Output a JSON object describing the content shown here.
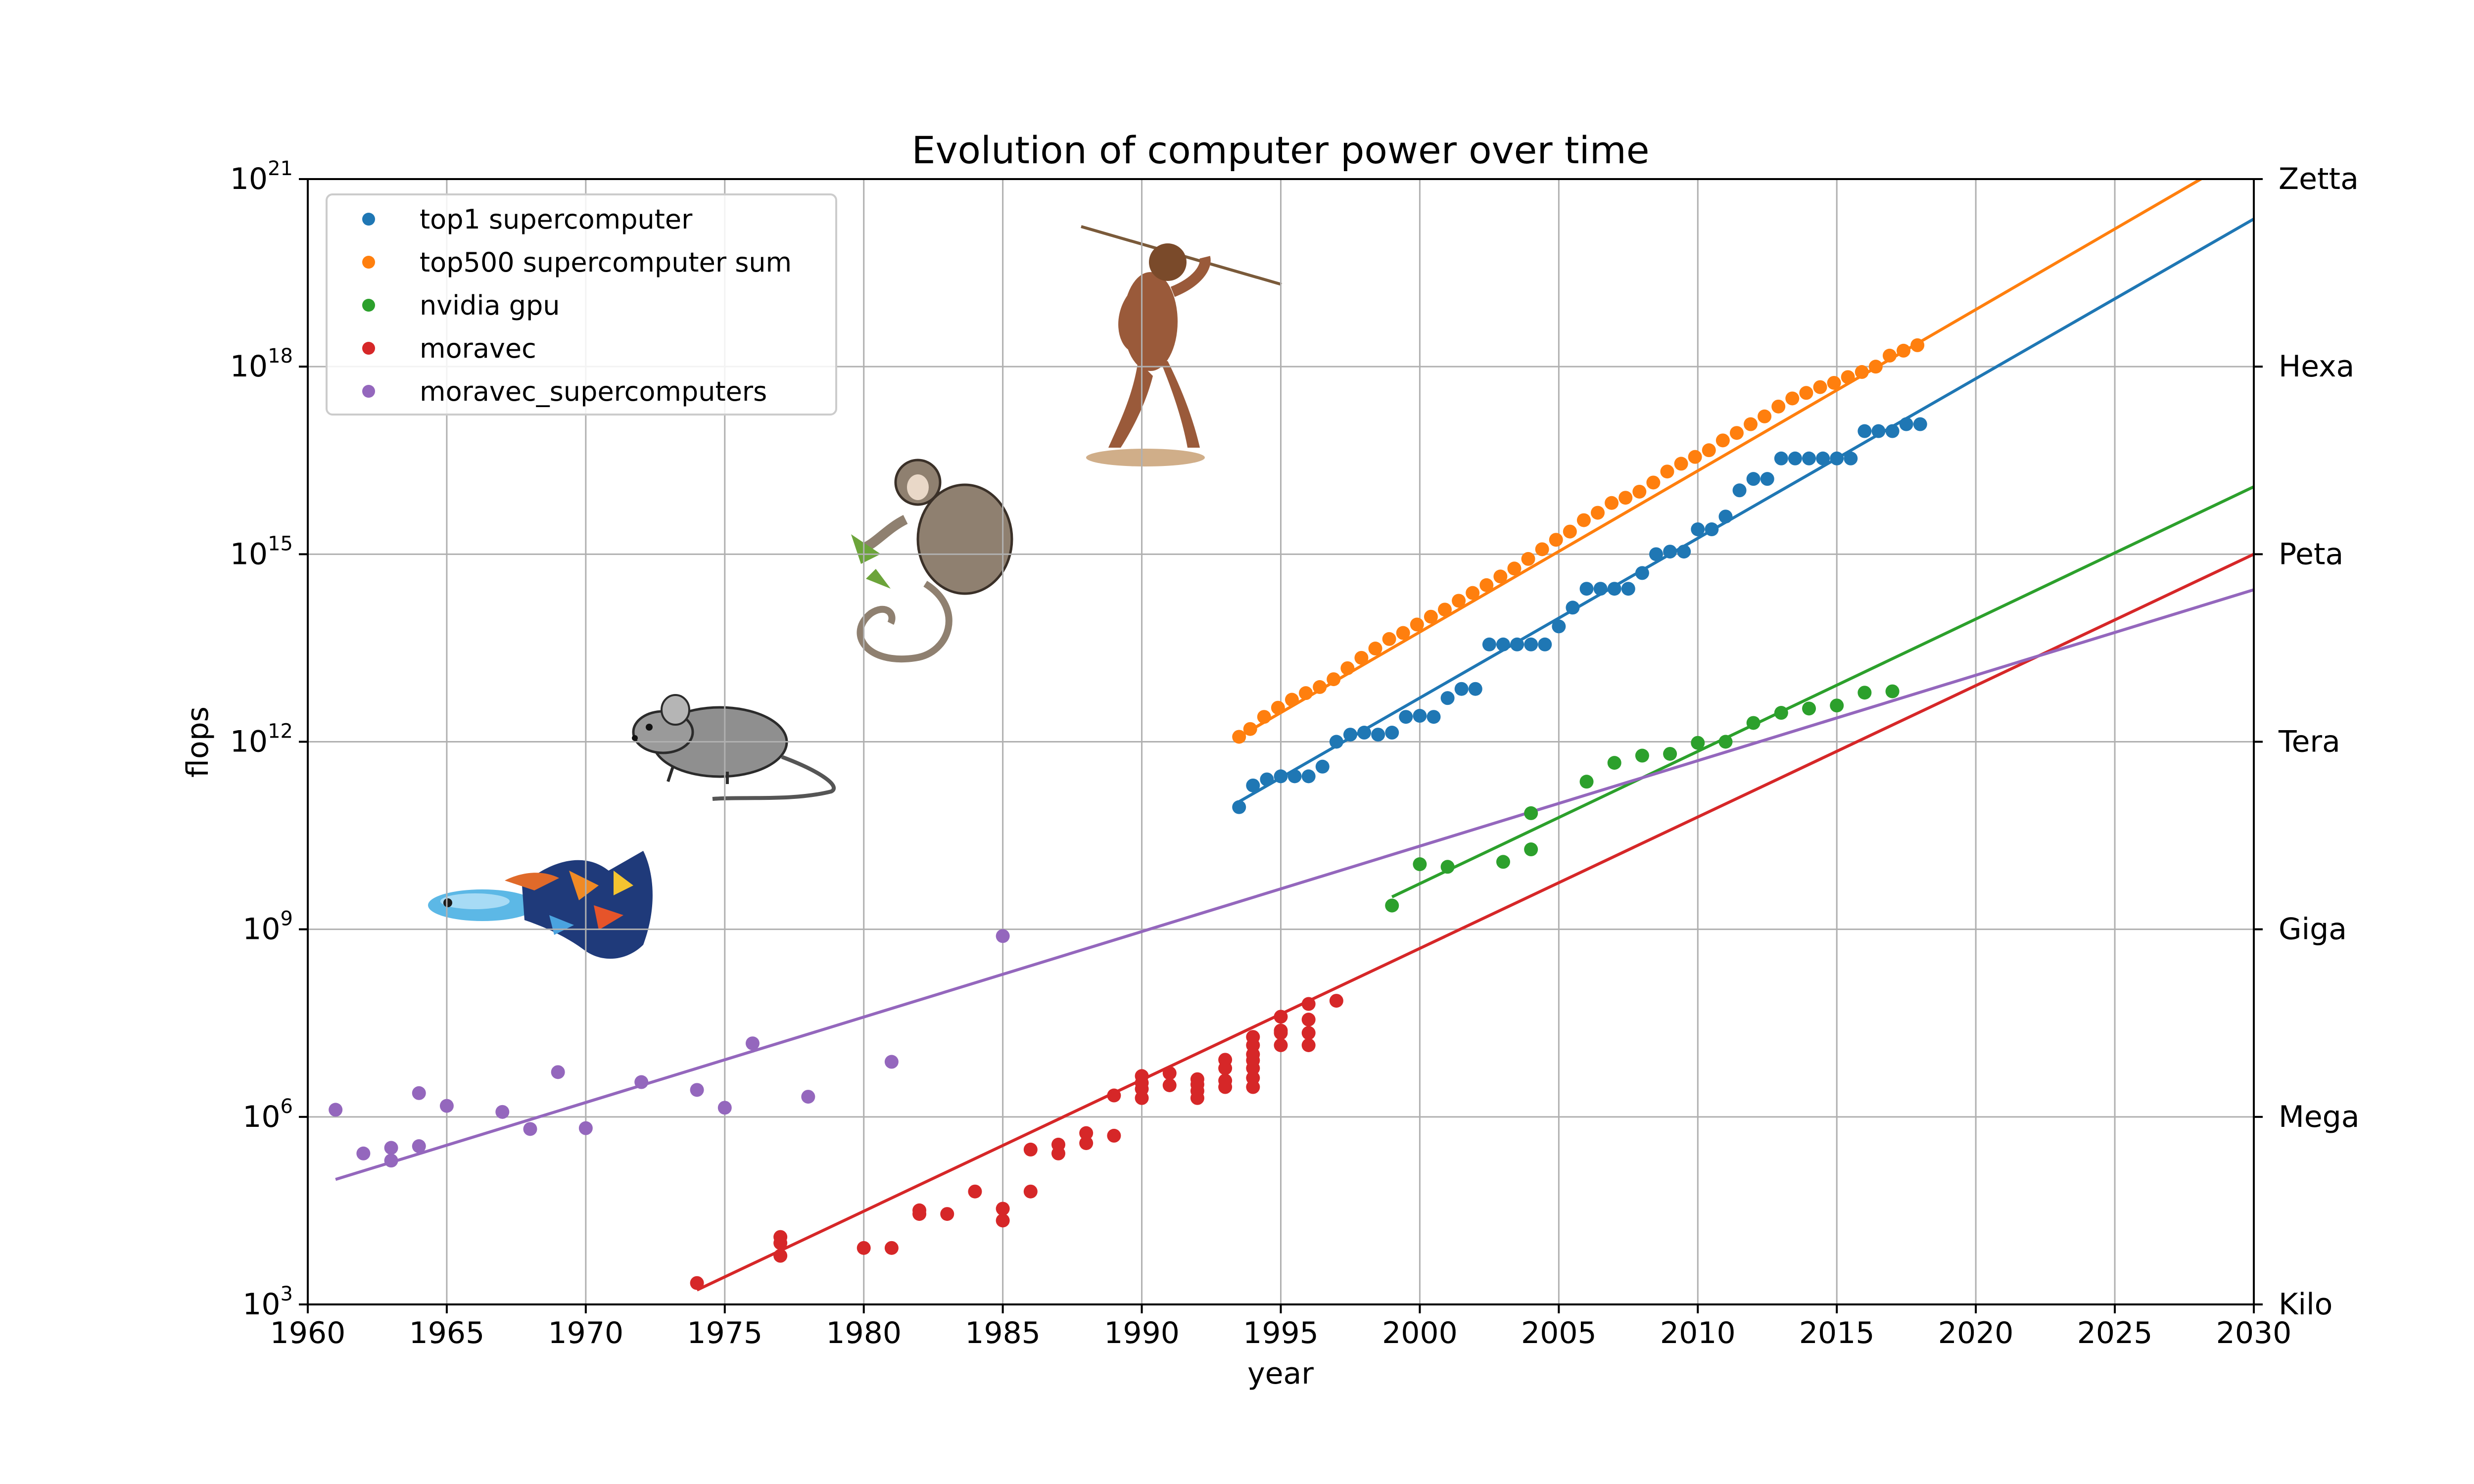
{
  "chart_data": {
    "type": "scatter",
    "title": "Evolution of computer power over time",
    "xlabel": "year",
    "ylabel": "flops",
    "xlim": [
      1960,
      2030
    ],
    "ylim": [
      1000,
      1e+21
    ],
    "yscale": "log",
    "grid": true,
    "legend_position": "upper-left",
    "x_ticks": [
      "1960",
      "1965",
      "1970",
      "1975",
      "1980",
      "1985",
      "1990",
      "1995",
      "2000",
      "2005",
      "2010",
      "2015",
      "2020",
      "2025",
      "2030"
    ],
    "y_ticks": [
      {
        "base": "10",
        "exp": "3"
      },
      {
        "base": "10",
        "exp": "6"
      },
      {
        "base": "10",
        "exp": "9"
      },
      {
        "base": "10",
        "exp": "12"
      },
      {
        "base": "10",
        "exp": "15"
      },
      {
        "base": "10",
        "exp": "18"
      },
      {
        "base": "10",
        "exp": "21"
      }
    ],
    "right_tick_labels": [
      "Kilo",
      "Mega",
      "Giga",
      "Tera",
      "Peta",
      "Hexa",
      "Zetta"
    ],
    "series": [
      {
        "name": "top1 supercomputer",
        "color": "#1f77b4",
        "points": [
          [
            1993.5,
            90000000000.0
          ],
          [
            1994,
            200000000000.0
          ],
          [
            1994.5,
            250000000000.0
          ],
          [
            1995,
            280000000000.0
          ],
          [
            1995.5,
            280000000000.0
          ],
          [
            1996,
            280000000000.0
          ],
          [
            1996.5,
            400000000000.0
          ],
          [
            1997,
            1000000000000.0
          ],
          [
            1997.5,
            1300000000000.0
          ],
          [
            1998,
            1400000000000.0
          ],
          [
            1998.5,
            1300000000000.0
          ],
          [
            1999,
            1400000000000.0
          ],
          [
            1999.5,
            2500000000000.0
          ],
          [
            2000,
            2600000000000.0
          ],
          [
            2000.5,
            2500000000000.0
          ],
          [
            2001,
            5000000000000.0
          ],
          [
            2001.5,
            7000000000000.0
          ],
          [
            2002,
            7000000000000.0
          ],
          [
            2002.5,
            36000000000000.0
          ],
          [
            2003,
            36000000000000.0
          ],
          [
            2003.5,
            36000000000000.0
          ],
          [
            2004,
            36000000000000.0
          ],
          [
            2004.5,
            36000000000000.0
          ],
          [
            2005,
            70000000000000.0
          ],
          [
            2005.5,
            140000000000000.0
          ],
          [
            2006,
            280000000000000.0
          ],
          [
            2006.5,
            280000000000000.0
          ],
          [
            2007,
            280000000000000.0
          ],
          [
            2007.5,
            280000000000000.0
          ],
          [
            2008,
            500000000000000.0
          ],
          [
            2008.5,
            1000000000000000.0
          ],
          [
            2009,
            1100000000000000.0
          ],
          [
            2009.5,
            1100000000000000.0
          ],
          [
            2010,
            2500000000000000.0
          ],
          [
            2010.5,
            2500000000000000.0
          ],
          [
            2011,
            4000000000000000.0
          ],
          [
            2011.5,
            1.05e+16
          ],
          [
            2012,
            1.6e+16
          ],
          [
            2012.5,
            1.6e+16
          ],
          [
            2013,
            3.4e+16
          ],
          [
            2013.5,
            3.4e+16
          ],
          [
            2014,
            3.4e+16
          ],
          [
            2014.5,
            3.4e+16
          ],
          [
            2015,
            3.4e+16
          ],
          [
            2015.5,
            3.4e+16
          ],
          [
            2016,
            9.3e+16
          ],
          [
            2016.5,
            9.3e+16
          ],
          [
            2017,
            9.3e+16
          ],
          [
            2017.5,
            1.2e+17
          ],
          [
            2018,
            1.2e+17
          ]
        ]
      },
      {
        "name": "top500 supercomputer sum",
        "color": "#ff7f0e",
        "points": [
          [
            1993.5,
            1200000000000.0
          ],
          [
            1993.9,
            1600000000000.0
          ],
          [
            1994.4,
            2500000000000.0
          ],
          [
            1994.9,
            3500000000000.0
          ],
          [
            1995.4,
            4700000000000.0
          ],
          [
            1995.9,
            6000000000000.0
          ],
          [
            1996.4,
            7500000000000.0
          ],
          [
            1996.9,
            10000000000000.0
          ],
          [
            1997.4,
            15000000000000.0
          ],
          [
            1997.9,
            22000000000000.0
          ],
          [
            1998.4,
            31000000000000.0
          ],
          [
            1998.9,
            44000000000000.0
          ],
          [
            1999.4,
            55000000000000.0
          ],
          [
            1999.9,
            75000000000000.0
          ],
          [
            2000.4,
            100000000000000.0
          ],
          [
            2000.9,
            130000000000000.0
          ],
          [
            2001.4,
            180000000000000.0
          ],
          [
            2001.9,
            240000000000000.0
          ],
          [
            2002.4,
            320000000000000.0
          ],
          [
            2002.9,
            440000000000000.0
          ],
          [
            2003.4,
            590000000000000.0
          ],
          [
            2003.9,
            840000000000000.0
          ],
          [
            2004.4,
            1200000000000000.0
          ],
          [
            2004.9,
            1700000000000000.0
          ],
          [
            2005.4,
            2300000000000000.0
          ],
          [
            2005.9,
            3500000000000000.0
          ],
          [
            2006.4,
            4600000000000000.0
          ],
          [
            2006.9,
            6600000000000000.0
          ],
          [
            2007.4,
            8000000000000000.0
          ],
          [
            2007.9,
            1e+16
          ],
          [
            2008.4,
            1.4e+16
          ],
          [
            2008.9,
            2.1e+16
          ],
          [
            2009.4,
            2.8e+16
          ],
          [
            2009.9,
            3.6e+16
          ],
          [
            2010.4,
            4.6e+16
          ],
          [
            2010.9,
            6.6e+16
          ],
          [
            2011.4,
            8.7e+16
          ],
          [
            2011.9,
            1.2e+17
          ],
          [
            2012.4,
            1.6e+17
          ],
          [
            2012.9,
            2.3e+17
          ],
          [
            2013.4,
            3.1e+17
          ],
          [
            2013.9,
            3.8e+17
          ],
          [
            2014.4,
            4.7e+17
          ],
          [
            2014.9,
            5.5e+17
          ],
          [
            2015.4,
            6.8e+17
          ],
          [
            2015.9,
            8.2e+17
          ],
          [
            2016.4,
            1e+18
          ],
          [
            2016.9,
            1.5e+18
          ],
          [
            2017.4,
            1.8e+18
          ],
          [
            2017.9,
            2.2e+18
          ]
        ]
      },
      {
        "name": "nvidia gpu",
        "color": "#2ca02c",
        "points": [
          [
            1999,
            2400000000.0
          ],
          [
            2000,
            11000000000.0
          ],
          [
            2001,
            10000000000.0
          ],
          [
            2003,
            12000000000.0
          ],
          [
            2004,
            19000000000.0
          ],
          [
            2004,
            72000000000.0
          ],
          [
            2006,
            230000000000.0
          ],
          [
            2007,
            460000000000.0
          ],
          [
            2008,
            600000000000.0
          ],
          [
            2009,
            640000000000.0
          ],
          [
            2010,
            960000000000.0
          ],
          [
            2011,
            1000000000000.0
          ],
          [
            2012,
            2000000000000.0
          ],
          [
            2013,
            2900000000000.0
          ],
          [
            2014,
            3400000000000.0
          ],
          [
            2015,
            3800000000000.0
          ],
          [
            2016,
            6100000000000.0
          ],
          [
            2017,
            6400000000000.0
          ]
        ]
      },
      {
        "name": "moravec",
        "color": "#d62728",
        "points": [
          [
            1974,
            2200.0
          ],
          [
            1977,
            6000.0
          ],
          [
            1977,
            9600.0
          ],
          [
            1977,
            12000.0
          ],
          [
            1980,
            8000.0
          ],
          [
            1981,
            8000.0
          ],
          [
            1982,
            28000.0
          ],
          [
            1982,
            32000.0
          ],
          [
            1983,
            28000.0
          ],
          [
            1984,
            64000.0
          ],
          [
            1985,
            22000.0
          ],
          [
            1985,
            34000.0
          ],
          [
            1986,
            64000.0
          ],
          [
            1986,
            300000.0
          ],
          [
            1987,
            260000.0
          ],
          [
            1987,
            360000.0
          ],
          [
            1988,
            380000.0
          ],
          [
            1988,
            550000.0
          ],
          [
            1989,
            500000.0
          ],
          [
            1989,
            2200000.0
          ],
          [
            1990,
            2000000.0
          ],
          [
            1990,
            2800000.0
          ],
          [
            1990,
            3500000.0
          ],
          [
            1990,
            4500000.0
          ],
          [
            1991,
            3200000.0
          ],
          [
            1991,
            5000000.0
          ],
          [
            1992,
            2000000.0
          ],
          [
            1992,
            2600000.0
          ],
          [
            1992,
            3300000.0
          ],
          [
            1992,
            4000000.0
          ],
          [
            1993,
            3000000.0
          ],
          [
            1993,
            3800000.0
          ],
          [
            1993,
            6000000.0
          ],
          [
            1993,
            8200000.0
          ],
          [
            1994,
            3000000.0
          ],
          [
            1994,
            4200000.0
          ],
          [
            1994,
            6000000.0
          ],
          [
            1994,
            8000000.0
          ],
          [
            1994,
            10000000.0
          ],
          [
            1994,
            14000000.0
          ],
          [
            1994,
            19000000.0
          ],
          [
            1995,
            14000000.0
          ],
          [
            1995,
            22000000.0
          ],
          [
            1995,
            24000000.0
          ],
          [
            1995,
            40000000.0
          ],
          [
            1996,
            14000000.0
          ],
          [
            1996,
            22000000.0
          ],
          [
            1996,
            36000000.0
          ],
          [
            1996,
            64000000.0
          ],
          [
            1997,
            72000000.0
          ]
        ]
      },
      {
        "name": "moravec_supercomputers",
        "color": "#9467bd",
        "points": [
          [
            1961,
            1300000.0
          ],
          [
            1962,
            260000.0
          ],
          [
            1963,
            320000.0
          ],
          [
            1963,
            200000.0
          ],
          [
            1964,
            340000.0
          ],
          [
            1964,
            2400000.0
          ],
          [
            1965,
            1500000.0
          ],
          [
            1967,
            1200000.0
          ],
          [
            1968,
            640000.0
          ],
          [
            1969,
            5200000.0
          ],
          [
            1970,
            660000.0
          ],
          [
            1972,
            3600000.0
          ],
          [
            1974,
            2700000.0
          ],
          [
            1975,
            1400000.0
          ],
          [
            1976,
            15000000.0
          ],
          [
            1978,
            2100000.0
          ],
          [
            1981,
            7600000.0
          ],
          [
            1985,
            780000000.0
          ]
        ]
      }
    ],
    "trend_lines": [
      {
        "series": "top1 supercomputer",
        "color": "#1f77b4",
        "from": [
          1993.5,
          110000000000.0
        ],
        "to": [
          2030,
          2.3e+20
        ]
      },
      {
        "series": "top500 supercomputer sum",
        "color": "#ff7f0e",
        "from": [
          1993.5,
          1200000000000.0
        ],
        "to": [
          2030,
          3.1e+21
        ]
      },
      {
        "series": "nvidia gpu",
        "color": "#2ca02c",
        "from": [
          1999,
          3300000000.0
        ],
        "to": [
          2030,
          1.2e+16
        ]
      },
      {
        "series": "moravec",
        "color": "#d62728",
        "from": [
          1974,
          1700.0
        ],
        "to": [
          2030,
          1000000000000000.0
        ]
      },
      {
        "series": "moravec_supercomputers",
        "color": "#9467bd",
        "from": [
          1961,
          100000.0
        ],
        "to": [
          2030,
          270000000000000.0
        ]
      }
    ]
  }
}
